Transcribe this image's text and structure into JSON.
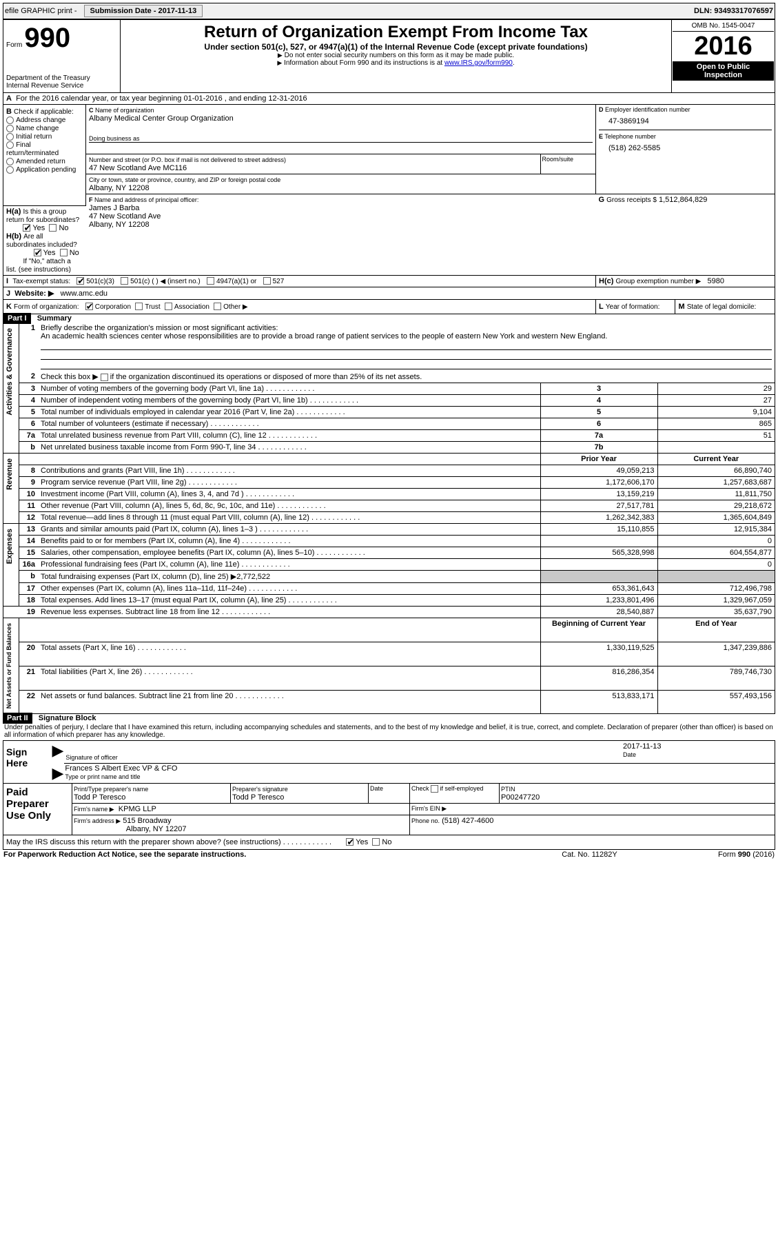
{
  "topbar": {
    "efile": "efile GRAPHIC print -",
    "submission_label": "Submission Date - 2017-11-13",
    "dln": "DLN: 93493317076597"
  },
  "header": {
    "form_label": "Form",
    "form_number": "990",
    "dept": "Department of the Treasury",
    "irs": "Internal Revenue Service",
    "title": "Return of Organization Exempt From Income Tax",
    "subtitle": "Under section 501(c), 527, or 4947(a)(1) of the Internal Revenue Code (except private foundations)",
    "note1": "Do not enter social security numbers on this form as it may be made public.",
    "note2_pre": "Information about Form 990 and its instructions is at ",
    "note2_link": "www.IRS.gov/form990",
    "omb": "OMB No. 1545-0047",
    "year": "2016",
    "open": "Open to Public Inspection"
  },
  "sectionA": {
    "cal_text": "For the 2016 calendar year, or tax year beginning 01-01-2016    , and ending 12-31-2016",
    "b_label": "Check if applicable:",
    "b_items": [
      "Address change",
      "Name change",
      "Initial return",
      "Final return/terminated",
      "Amended return",
      "Application pending"
    ],
    "c_label": "Name of organization",
    "c_name": "Albany Medical Center Group Organization",
    "dba": "Doing business as",
    "addr_label": "Number and street (or P.O. box if mail is not delivered to street address)",
    "room": "Room/suite",
    "addr": "47 New Scotland Ave MC116",
    "city_label": "City or town, state or province, country, and ZIP or foreign postal code",
    "city": "Albany, NY  12208",
    "d_label": "Employer identification number",
    "ein": "47-3869194",
    "e_label": "Telephone number",
    "phone": "(518) 262-5585",
    "g_label": "Gross receipts $",
    "g_val": "1,512,864,829",
    "f_label": "Name and address of principal officer:",
    "f_name": "James J Barba",
    "f_addr1": "47 New Scotland Ave",
    "f_addr2": "Albany, NY  12208",
    "ha": "Is this a group return for subordinates?",
    "hb": "Are all subordinates included?",
    "hb_note": "If \"No,\" attach a list. (see instructions)",
    "hc": "Group exemption number ▶",
    "hc_val": "5980",
    "yes": "Yes",
    "no": "No",
    "i_label": "Tax-exempt status:",
    "i_items": [
      "501(c)(3)",
      "501(c) (  ) ◀ (insert no.)",
      "4947(a)(1) or",
      "527"
    ],
    "j_label": "Website: ▶",
    "j_val": "www.amc.edu",
    "k_label": "Form of organization:",
    "k_items": [
      "Corporation",
      "Trust",
      "Association",
      "Other ▶"
    ],
    "l_label": "Year of formation:",
    "m_label": "State of legal domicile:"
  },
  "part1": {
    "title": "Part I",
    "name": "Summary",
    "side1": "Activities & Governance",
    "side2": "Revenue",
    "side3": "Expenses",
    "side4": "Net Assets or\nFund Balances",
    "q1": "Briefly describe the organization's mission or most significant activities:",
    "q1_text": "An academic health sciences center whose responsibilities are to provide a broad range of patient services to the people of eastern New York and western New England.",
    "q2": "Check this box ▶           if the organization discontinued its operations or disposed of more than 25% of its net assets.",
    "rows_gov": [
      {
        "n": "3",
        "t": "Number of voting members of the governing body (Part VI, line 1a)",
        "l": "3",
        "v": "29"
      },
      {
        "n": "4",
        "t": "Number of independent voting members of the governing body (Part VI, line 1b)",
        "l": "4",
        "v": "27"
      },
      {
        "n": "5",
        "t": "Total number of individuals employed in calendar year 2016 (Part V, line 2a)",
        "l": "5",
        "v": "9,104"
      },
      {
        "n": "6",
        "t": "Total number of volunteers (estimate if necessary)",
        "l": "6",
        "v": "865"
      },
      {
        "n": "7a",
        "t": "Total unrelated business revenue from Part VIII, column (C), line 12",
        "l": "7a",
        "v": "51"
      },
      {
        "n": "b",
        "t": "Net unrelated business taxable income from Form 990-T, line 34",
        "l": "7b",
        "v": ""
      }
    ],
    "hdr_prior": "Prior Year",
    "hdr_curr": "Current Year",
    "rows_rev": [
      {
        "n": "8",
        "t": "Contributions and grants (Part VIII, line 1h)",
        "p": "49,059,213",
        "c": "66,890,740"
      },
      {
        "n": "9",
        "t": "Program service revenue (Part VIII, line 2g)",
        "p": "1,172,606,170",
        "c": "1,257,683,687"
      },
      {
        "n": "10",
        "t": "Investment income (Part VIII, column (A), lines 3, 4, and 7d )",
        "p": "13,159,219",
        "c": "11,811,750"
      },
      {
        "n": "11",
        "t": "Other revenue (Part VIII, column (A), lines 5, 6d, 8c, 9c, 10c, and 11e)",
        "p": "27,517,781",
        "c": "29,218,672"
      },
      {
        "n": "12",
        "t": "Total revenue—add lines 8 through 11 (must equal Part VIII, column (A), line 12)",
        "p": "1,262,342,383",
        "c": "1,365,604,849"
      }
    ],
    "rows_exp": [
      {
        "n": "13",
        "t": "Grants and similar amounts paid (Part IX, column (A), lines 1–3 )",
        "p": "15,110,855",
        "c": "12,915,384"
      },
      {
        "n": "14",
        "t": "Benefits paid to or for members (Part IX, column (A), line 4)",
        "p": "",
        "c": "0"
      },
      {
        "n": "15",
        "t": "Salaries, other compensation, employee benefits (Part IX, column (A), lines 5–10)",
        "p": "565,328,998",
        "c": "604,554,877"
      },
      {
        "n": "16a",
        "t": "Professional fundraising fees (Part IX, column (A), line 11e)",
        "p": "",
        "c": "0"
      },
      {
        "n": "b",
        "t": "Total fundraising expenses (Part IX, column (D), line 25) ▶2,772,522",
        "p": "SHADE",
        "c": "SHADE"
      },
      {
        "n": "17",
        "t": "Other expenses (Part IX, column (A), lines 11a–11d, 11f–24e)",
        "p": "653,361,643",
        "c": "712,496,798"
      },
      {
        "n": "18",
        "t": "Total expenses. Add lines 13–17 (must equal Part IX, column (A), line 25)",
        "p": "1,233,801,496",
        "c": "1,329,967,059"
      },
      {
        "n": "19",
        "t": "Revenue less expenses. Subtract line 18 from line 12",
        "p": "28,540,887",
        "c": "35,637,790"
      }
    ],
    "hdr_beg": "Beginning of Current Year",
    "hdr_end": "End of Year",
    "rows_net": [
      {
        "n": "20",
        "t": "Total assets (Part X, line 16)",
        "p": "1,330,119,525",
        "c": "1,347,239,886"
      },
      {
        "n": "21",
        "t": "Total liabilities (Part X, line 26)",
        "p": "816,286,354",
        "c": "789,746,730"
      },
      {
        "n": "22",
        "t": "Net assets or fund balances. Subtract line 21 from line 20",
        "p": "513,833,171",
        "c": "557,493,156"
      }
    ]
  },
  "part2": {
    "title": "Part II",
    "name": "Signature Block",
    "declaration": "Under penalties of perjury, I declare that I have examined this return, including accompanying schedules and statements, and to the best of my knowledge and belief, it is true, correct, and complete. Declaration of preparer (other than officer) is based on all information of which preparer has any knowledge.",
    "sign_here": "Sign Here",
    "sig_officer": "Signature of officer",
    "date_label": "Date",
    "date_val": "2017-11-13",
    "officer_name": "Frances S Albert  Exec VP & CFO",
    "type_name": "Type or print name and title",
    "paid": "Paid Preparer Use Only",
    "prep_name_label": "Print/Type preparer's name",
    "prep_name": "Todd P Teresco",
    "prep_sig_label": "Preparer's signature",
    "prep_sig": "Todd P Teresco",
    "check_self": "Check          if self-employed",
    "ptin_label": "PTIN",
    "ptin": "P00247720",
    "firm_name_label": "Firm's name     ▶",
    "firm_name": "KPMG LLP",
    "firm_ein_label": "Firm's EIN ▶",
    "firm_addr_label": "Firm's address ▶",
    "firm_addr": "515 Broadway",
    "firm_city": "Albany, NY  12207",
    "firm_phone_label": "Phone no.",
    "firm_phone": "(518) 427-4600",
    "discuss": "May the IRS discuss this return with the preparer shown above? (see instructions)",
    "paperwork": "For Paperwork Reduction Act Notice, see the separate instructions.",
    "catno": "Cat. No. 11282Y",
    "formno": "Form 990 (2016)"
  }
}
